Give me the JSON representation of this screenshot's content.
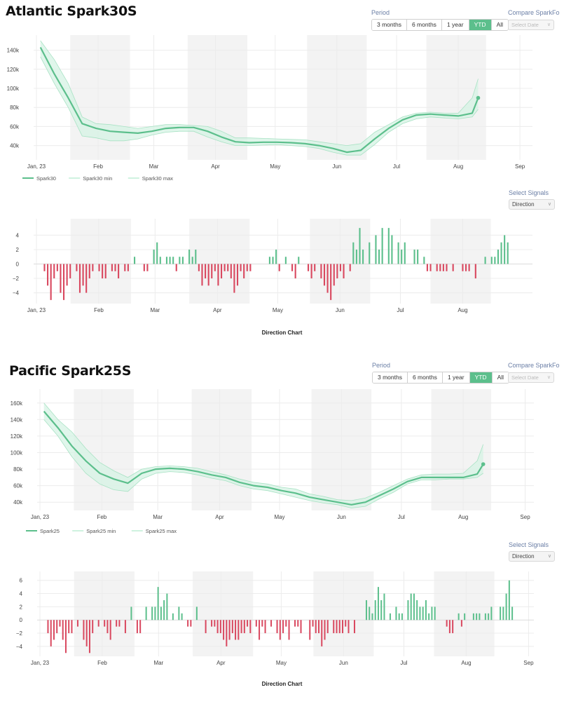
{
  "controls": {
    "period_label": "Period",
    "period_options": [
      "3 months",
      "6 months",
      "1 year",
      "YTD",
      "All"
    ],
    "period_selected": "YTD",
    "compare_label": "Compare SparkFo",
    "compare_placeholder": "Select Date",
    "signals_label": "Select Signals",
    "signals_selected": "Direction",
    "direction_caption": "Direction Chart"
  },
  "colors": {
    "line": "#5cbf8c",
    "band": "#d6f3e4",
    "positive": "#5cbf8c",
    "negative": "#d9485f",
    "shade": "#f3f3f3"
  },
  "chart_data": [
    {
      "type": "line",
      "title": "Atlantic Spark30S",
      "x_ticks": [
        "Jan, 23",
        "Feb",
        "Mar",
        "Apr",
        "May",
        "Jun",
        "Jul",
        "Aug",
        "Sep"
      ],
      "y_ticks": [
        "40k",
        "60k",
        "80k",
        "100k",
        "120k",
        "140k"
      ],
      "ylim": [
        25000,
        150000
      ],
      "legend": [
        "Spark30",
        "Spark30 min",
        "Spark30 max"
      ],
      "shaded_ranges": [
        [
          "2023-01-18",
          "2023-02-17"
        ],
        [
          "2023-03-18",
          "2023-04-17"
        ],
        [
          "2023-05-17",
          "2023-06-16"
        ],
        [
          "2023-07-16",
          "2023-08-15"
        ]
      ],
      "dates": [
        "2023-01-03",
        "2023-01-10",
        "2023-01-17",
        "2023-01-24",
        "2023-01-31",
        "2023-02-07",
        "2023-02-14",
        "2023-02-21",
        "2023-02-28",
        "2023-03-07",
        "2023-03-14",
        "2023-03-21",
        "2023-03-28",
        "2023-04-04",
        "2023-04-11",
        "2023-04-18",
        "2023-04-25",
        "2023-05-02",
        "2023-05-09",
        "2023-05-16",
        "2023-05-23",
        "2023-05-30",
        "2023-06-06",
        "2023-06-13",
        "2023-06-20",
        "2023-06-27",
        "2023-07-04",
        "2023-07-11",
        "2023-07-18",
        "2023-07-25",
        "2023-08-01",
        "2023-08-08",
        "2023-08-11"
      ],
      "series": [
        {
          "name": "Spark30",
          "values": [
            143000,
            115000,
            90000,
            63000,
            58000,
            55000,
            54000,
            53000,
            55000,
            58000,
            59000,
            59000,
            55000,
            49000,
            44000,
            43000,
            43500,
            43500,
            43000,
            42000,
            40000,
            37000,
            33000,
            35000,
            47000,
            58000,
            67000,
            72000,
            73000,
            72000,
            71000,
            74000,
            90000
          ]
        },
        {
          "name": "Spark30 min",
          "values": [
            133000,
            105000,
            80000,
            50000,
            48000,
            45000,
            45000,
            47000,
            51000,
            54000,
            55000,
            55000,
            49000,
            44000,
            40000,
            40000,
            40500,
            41000,
            40000,
            39000,
            37000,
            33000,
            30000,
            30000,
            41000,
            54000,
            63000,
            68000,
            70000,
            69000,
            68000,
            70000,
            78000
          ]
        },
        {
          "name": "Spark30 max",
          "values": [
            150000,
            130000,
            105000,
            70000,
            63000,
            62000,
            60000,
            58000,
            60000,
            62000,
            62000,
            61000,
            60000,
            55000,
            48000,
            48000,
            47500,
            47000,
            46500,
            46000,
            44000,
            42000,
            40000,
            42000,
            54000,
            62000,
            70000,
            74000,
            75000,
            74000,
            74000,
            90000,
            110000
          ]
        }
      ]
    },
    {
      "type": "bar",
      "title": "Direction Chart",
      "x_ticks": [
        "Jan, 23",
        "Feb",
        "Mar",
        "Apr",
        "May",
        "Jun",
        "Jul",
        "Aug"
      ],
      "y_ticks": [
        "−4",
        "−2",
        "0",
        "2",
        "4"
      ],
      "ylim": [
        -5.5,
        5.5
      ],
      "shaded_ranges": [
        [
          "2023-01-18",
          "2023-02-17"
        ],
        [
          "2023-03-18",
          "2023-04-17"
        ],
        [
          "2023-05-17",
          "2023-06-16"
        ],
        [
          "2023-07-16",
          "2023-08-15"
        ]
      ],
      "start_date": "2023-01-05",
      "values": [
        -1,
        -3,
        -5,
        -2,
        -1,
        -4,
        -5,
        -3,
        -2,
        0,
        -1,
        -4,
        -3,
        -4,
        -2,
        -1,
        0,
        -1,
        -2,
        -2,
        0,
        -1,
        -1,
        -2,
        0,
        -1,
        -1,
        0,
        1,
        0,
        0,
        -1,
        -1,
        0,
        2,
        3,
        1,
        0,
        1,
        1,
        1,
        -1,
        1,
        1,
        0,
        2,
        1,
        2,
        -1,
        -3,
        -2,
        -3,
        -2,
        -1,
        -3,
        -2,
        -1,
        -1,
        -2,
        -4,
        -3,
        -1,
        -2,
        -1,
        -1,
        0,
        0,
        0,
        0,
        0,
        1,
        1,
        2,
        -1,
        0,
        1,
        0,
        -1,
        -2,
        1,
        0,
        0,
        -1,
        -2,
        -1,
        0,
        -2,
        -3,
        -4,
        -5,
        -3,
        -2,
        -1,
        -2,
        0,
        -1,
        3,
        2,
        5,
        2,
        0,
        3,
        0,
        4,
        2,
        5,
        0,
        5,
        4,
        0,
        3,
        2,
        3,
        0,
        0,
        2,
        2,
        0,
        1,
        -1,
        -1,
        0,
        -1,
        -1,
        -1,
        -1,
        0,
        -1,
        0,
        0,
        -1,
        -1,
        -1,
        0,
        -2,
        0,
        0,
        1,
        0,
        1,
        1,
        2,
        3,
        4,
        3
      ]
    },
    {
      "type": "line",
      "title": "Pacific Spark25S",
      "x_ticks": [
        "Jan, 23",
        "Feb",
        "Mar",
        "Apr",
        "May",
        "Jun",
        "Jul",
        "Aug",
        "Sep"
      ],
      "y_ticks": [
        "40k",
        "60k",
        "80k",
        "100k",
        "120k",
        "140k",
        "160k"
      ],
      "ylim": [
        30000,
        170000
      ],
      "legend": [
        "Spark25",
        "Spark25 min",
        "Spark25 max"
      ],
      "shaded_ranges": [
        [
          "2023-01-18",
          "2023-02-17"
        ],
        [
          "2023-03-18",
          "2023-04-17"
        ],
        [
          "2023-05-17",
          "2023-06-16"
        ],
        [
          "2023-07-16",
          "2023-08-15"
        ]
      ],
      "dates": [
        "2023-01-03",
        "2023-01-10",
        "2023-01-17",
        "2023-01-24",
        "2023-01-31",
        "2023-02-07",
        "2023-02-14",
        "2023-02-21",
        "2023-02-28",
        "2023-03-07",
        "2023-03-14",
        "2023-03-21",
        "2023-03-28",
        "2023-04-04",
        "2023-04-11",
        "2023-04-18",
        "2023-04-25",
        "2023-05-02",
        "2023-05-09",
        "2023-05-16",
        "2023-05-23",
        "2023-05-30",
        "2023-06-06",
        "2023-06-13",
        "2023-06-20",
        "2023-06-27",
        "2023-07-04",
        "2023-07-11",
        "2023-07-18",
        "2023-07-25",
        "2023-08-01",
        "2023-08-08",
        "2023-08-11"
      ],
      "series": [
        {
          "name": "Spark25",
          "values": [
            150000,
            130000,
            108000,
            90000,
            75000,
            68000,
            63000,
            75000,
            80000,
            81000,
            80000,
            77000,
            73000,
            70000,
            64000,
            60000,
            58000,
            54000,
            51000,
            46000,
            43000,
            40000,
            37000,
            40000,
            48000,
            56000,
            65000,
            70000,
            70000,
            70000,
            70000,
            74000,
            86000
          ]
        },
        {
          "name": "Spark25 min",
          "values": [
            140000,
            120000,
            95000,
            75000,
            62000,
            55000,
            53000,
            68000,
            75000,
            77000,
            76000,
            73000,
            69000,
            66000,
            60000,
            56000,
            54000,
            50000,
            46000,
            42000,
            39000,
            37000,
            33000,
            35000,
            44000,
            52000,
            62000,
            67000,
            67000,
            68000,
            68000,
            70000,
            75000
          ]
        },
        {
          "name": "Spark25 max",
          "values": [
            160000,
            140000,
            125000,
            105000,
            88000,
            78000,
            70000,
            80000,
            83000,
            84000,
            83000,
            81000,
            77000,
            73000,
            68000,
            64000,
            62000,
            58000,
            56000,
            50000,
            47000,
            43000,
            42000,
            45000,
            52000,
            60000,
            68000,
            73000,
            74000,
            74000,
            75000,
            90000,
            110000
          ]
        }
      ]
    },
    {
      "type": "bar",
      "title": "Direction Chart",
      "x_ticks": [
        "Jan, 23",
        "Feb",
        "Mar",
        "Apr",
        "May",
        "Jun",
        "Jul",
        "Aug",
        "Sep"
      ],
      "y_ticks": [
        "−4",
        "−2",
        "0",
        "2",
        "4",
        "6"
      ],
      "ylim": [
        -5.5,
        6.5
      ],
      "shaded_ranges": [
        [
          "2023-01-18",
          "2023-02-17"
        ],
        [
          "2023-03-18",
          "2023-04-17"
        ],
        [
          "2023-05-17",
          "2023-06-16"
        ],
        [
          "2023-07-16",
          "2023-08-15"
        ]
      ],
      "start_date": "2023-01-05",
      "values": [
        -2,
        -4,
        -3,
        -2,
        -1,
        -3,
        -5,
        -2,
        -2,
        0,
        -1,
        0,
        -3,
        -4,
        -5,
        -2,
        0,
        -1,
        0,
        -1,
        -2,
        -3,
        0,
        -1,
        -1,
        0,
        -2,
        0,
        2,
        0,
        -2,
        -2,
        0,
        2,
        0,
        2,
        2,
        5,
        2,
        3,
        4,
        0,
        1,
        0,
        2,
        1,
        0,
        -1,
        -1,
        0,
        2,
        0,
        0,
        -2,
        0,
        -1,
        -1,
        -2,
        -2,
        -3,
        -4,
        -3,
        -2,
        -3,
        -3,
        -2,
        -2,
        -1,
        -2,
        0,
        -1,
        -3,
        -1,
        -2,
        0,
        -1,
        0,
        -2,
        -3,
        -2,
        -1,
        -3,
        0,
        -1,
        -1,
        -2,
        0,
        0,
        -3,
        -1,
        -2,
        -2,
        -4,
        -3,
        -2,
        0,
        -2,
        -2,
        -2,
        -2,
        -1,
        -2,
        0,
        -2,
        0,
        0,
        0,
        3,
        2,
        1,
        3,
        5,
        3,
        4,
        0,
        1,
        0,
        2,
        1,
        1,
        0,
        3,
        4,
        4,
        3,
        2,
        2,
        3,
        1,
        2,
        2,
        0,
        0,
        0,
        -1,
        -2,
        -2,
        0,
        1,
        -1,
        1,
        0,
        0,
        1,
        1,
        1,
        0,
        1,
        1,
        2,
        0,
        0,
        2,
        2,
        4,
        6,
        2
      ]
    }
  ]
}
